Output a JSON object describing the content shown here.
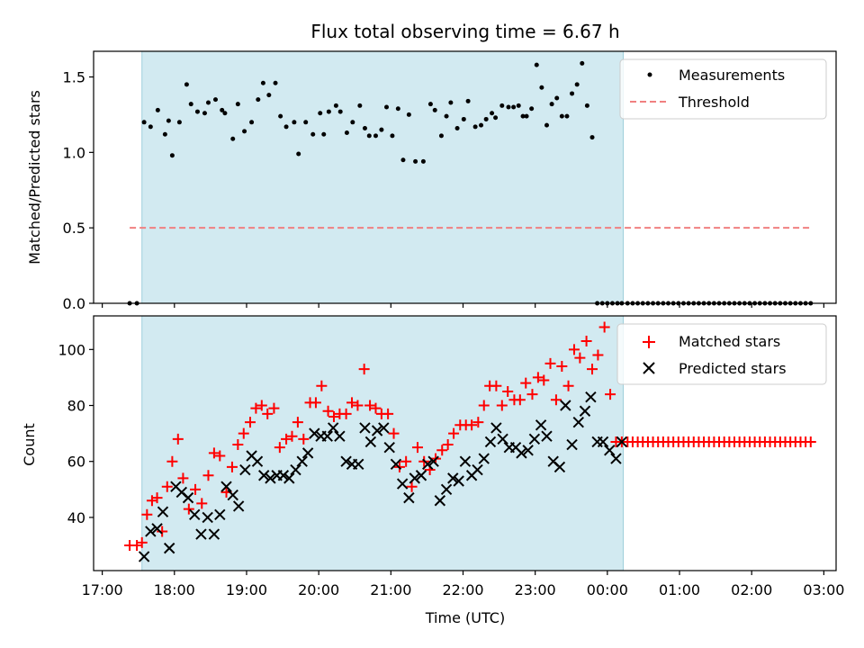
{
  "chart_data": [
    {
      "type": "scatter",
      "title": "Flux total observing time = 6.67 h",
      "xlabel": "",
      "ylabel": "Matched/Predicted stars",
      "ylim": [
        0,
        1.67
      ],
      "yticks": [
        0.0,
        0.5,
        1.0,
        1.5
      ],
      "ytick_labels": [
        "0.0",
        "0.5",
        "1.0",
        "1.5"
      ],
      "xlim_hours": [
        16.88,
        27.17
      ],
      "observing_window_hours": [
        17.55,
        24.22
      ],
      "span_color": "#add8e6",
      "legend": {
        "position": "top-right",
        "entries": [
          "Measurements",
          "Threshold"
        ]
      },
      "series": [
        {
          "name": "Measurements",
          "marker": "dot",
          "color": "#000000",
          "x": [
            17.38,
            17.48,
            17.58,
            17.67,
            17.77,
            17.87,
            17.92,
            17.97,
            18.07,
            18.17,
            18.23,
            18.32,
            18.42,
            18.47,
            18.57,
            18.66,
            18.7,
            18.81,
            18.88,
            18.97,
            19.07,
            19.16,
            19.23,
            19.31,
            19.4,
            19.47,
            19.55,
            19.66,
            19.72,
            19.82,
            19.92,
            20.02,
            20.07,
            20.14,
            20.24,
            20.3,
            20.39,
            20.47,
            20.57,
            20.64,
            20.7,
            20.79,
            20.87,
            20.94,
            21.02,
            21.1,
            21.17,
            21.25,
            21.34,
            21.45,
            21.55,
            21.61,
            21.7,
            21.77,
            21.83,
            21.92,
            22.01,
            22.07,
            22.17,
            22.25,
            22.32,
            22.4,
            22.45,
            22.54,
            22.63,
            22.7,
            22.77,
            22.83,
            22.88,
            22.95,
            23.02,
            23.09,
            23.16,
            23.23,
            23.3,
            23.37,
            23.44,
            23.51,
            23.58,
            23.65,
            23.72,
            23.79,
            23.86,
            23.93,
            24.0,
            24.07,
            24.14,
            24.2
          ],
          "y": [
            0.0,
            0.0,
            1.2,
            1.17,
            1.28,
            1.12,
            1.21,
            0.98,
            1.2,
            1.45,
            1.32,
            1.27,
            1.26,
            1.33,
            1.35,
            1.28,
            1.26,
            1.09,
            1.32,
            1.14,
            1.2,
            1.35,
            1.46,
            1.38,
            1.46,
            1.24,
            1.17,
            1.2,
            0.99,
            1.2,
            1.12,
            1.26,
            1.12,
            1.27,
            1.31,
            1.27,
            1.13,
            1.2,
            1.31,
            1.16,
            1.11,
            1.11,
            1.15,
            1.3,
            1.11,
            1.29,
            0.95,
            1.25,
            0.94,
            0.94,
            1.32,
            1.28,
            1.11,
            1.24,
            1.33,
            1.16,
            1.22,
            1.34,
            1.17,
            1.18,
            1.22,
            1.26,
            1.23,
            1.31,
            1.3,
            1.3,
            1.31,
            1.24,
            1.24,
            1.29,
            1.58,
            1.43,
            1.18,
            1.32,
            1.36,
            1.24,
            1.24,
            1.39,
            1.45,
            1.59,
            1.31,
            1.1,
            0.0,
            0.0,
            0.0,
            0.0,
            0.0,
            0.0
          ],
          "x_zero_tail_start": 24.28,
          "x_zero_tail_end": 26.82,
          "x_zero_tail_step": 0.0705,
          "y_zero_tail": 0.0
        },
        {
          "name": "Threshold",
          "line_style": "dashed",
          "color": "#f08080",
          "x": [
            17.38,
            26.82
          ],
          "y": [
            0.5,
            0.5
          ]
        }
      ]
    },
    {
      "type": "scatter",
      "title": "",
      "xlabel": "Time (UTC)",
      "ylabel": "Count",
      "ylim": [
        21,
        112
      ],
      "yticks": [
        40,
        60,
        80,
        100
      ],
      "ytick_labels": [
        "40",
        "60",
        "80",
        "100"
      ],
      "xlim_hours": [
        16.88,
        27.17
      ],
      "xticks_hours": [
        17,
        18,
        19,
        20,
        21,
        22,
        23,
        24,
        25,
        26,
        27
      ],
      "xtick_labels": [
        "17:00",
        "18:00",
        "19:00",
        "20:00",
        "21:00",
        "22:00",
        "23:00",
        "00:00",
        "01:00",
        "02:00",
        "03:00"
      ],
      "observing_window_hours": [
        17.55,
        24.22
      ],
      "span_color": "#add8e6",
      "legend": {
        "position": "top-right",
        "entries": [
          "Matched stars",
          "Predicted stars"
        ]
      },
      "series": [
        {
          "name": "Matched stars",
          "marker": "plus",
          "color": "#ff0000",
          "x": [
            17.38,
            17.48,
            17.55,
            17.62,
            17.69,
            17.76,
            17.83,
            17.9,
            17.97,
            18.05,
            18.12,
            18.2,
            18.29,
            18.38,
            18.47,
            18.55,
            18.63,
            18.72,
            18.8,
            18.88,
            18.96,
            19.05,
            19.13,
            19.21,
            19.29,
            19.38,
            19.46,
            19.55,
            19.63,
            19.71,
            19.79,
            19.88,
            19.96,
            20.04,
            20.13,
            20.21,
            20.29,
            20.38,
            20.46,
            20.54,
            20.63,
            20.71,
            20.79,
            20.87,
            20.96,
            21.04,
            21.12,
            21.21,
            21.29,
            21.37,
            21.46,
            21.54,
            21.62,
            21.71,
            21.79,
            21.87,
            21.96,
            22.04,
            22.12,
            22.21,
            22.29,
            22.37,
            22.46,
            22.54,
            22.62,
            22.71,
            22.79,
            22.87,
            22.96,
            23.04,
            23.12,
            23.21,
            23.29,
            23.37,
            23.46,
            23.54,
            23.62,
            23.71,
            23.79,
            23.87,
            23.96,
            24.04,
            24.12,
            24.2
          ],
          "y": [
            30,
            30,
            31,
            41,
            46,
            47,
            35,
            51,
            60,
            68,
            54,
            43,
            50,
            45,
            55,
            63,
            62,
            49,
            58,
            66,
            70,
            74,
            79,
            80,
            77,
            79,
            65,
            68,
            69,
            74,
            68,
            81,
            81,
            87,
            78,
            76,
            77,
            77,
            81,
            80,
            93,
            80,
            79,
            77,
            77,
            70,
            58,
            60,
            51,
            65,
            60,
            57,
            61,
            64,
            66,
            70,
            73,
            73,
            73,
            74,
            80,
            87,
            87,
            80,
            85,
            82,
            82,
            88,
            84,
            90,
            89,
            95,
            82,
            94,
            87,
            100,
            97,
            103,
            93,
            98,
            108,
            84,
            67,
            67
          ],
          "x_flat_tail_start": 24.28,
          "x_flat_tail_end": 26.82,
          "x_flat_tail_step": 0.0705,
          "y_flat_tail": 67
        },
        {
          "name": "Predicted stars",
          "marker": "x",
          "color": "#000000",
          "x": [
            17.58,
            17.67,
            17.76,
            17.84,
            17.93,
            18.02,
            18.1,
            18.19,
            18.28,
            18.37,
            18.46,
            18.55,
            18.63,
            18.72,
            18.81,
            18.89,
            18.98,
            19.07,
            19.15,
            19.24,
            19.33,
            19.42,
            19.51,
            19.59,
            19.68,
            19.77,
            19.85,
            19.94,
            20.03,
            20.12,
            20.2,
            20.29,
            20.38,
            20.46,
            20.55,
            20.64,
            20.72,
            20.81,
            20.9,
            20.98,
            21.07,
            21.16,
            21.25,
            21.33,
            21.42,
            21.51,
            21.59,
            21.68,
            21.77,
            21.86,
            21.94,
            22.03,
            22.12,
            22.2,
            22.29,
            22.38,
            22.46,
            22.55,
            22.64,
            22.73,
            22.81,
            22.9,
            22.99,
            23.08,
            23.16,
            23.25,
            23.34,
            23.42,
            23.51,
            23.6,
            23.69,
            23.77,
            23.86,
            23.94,
            24.03,
            24.12,
            24.2
          ],
          "y": [
            26,
            35,
            36,
            42,
            29,
            51,
            49,
            47,
            41,
            34,
            40,
            34,
            41,
            51,
            48,
            44,
            57,
            62,
            60,
            55,
            54,
            55,
            55,
            54,
            57,
            60,
            63,
            70,
            69,
            69,
            72,
            69,
            60,
            59,
            59,
            72,
            67,
            71,
            72,
            65,
            59,
            52,
            47,
            54,
            55,
            59,
            60,
            46,
            50,
            54,
            53,
            60,
            55,
            57,
            61,
            67,
            72,
            68,
            65,
            65,
            63,
            64,
            68,
            73,
            69,
            60,
            58,
            80,
            66,
            74,
            78,
            83,
            67,
            67,
            64,
            61,
            67
          ]
        }
      ]
    }
  ]
}
